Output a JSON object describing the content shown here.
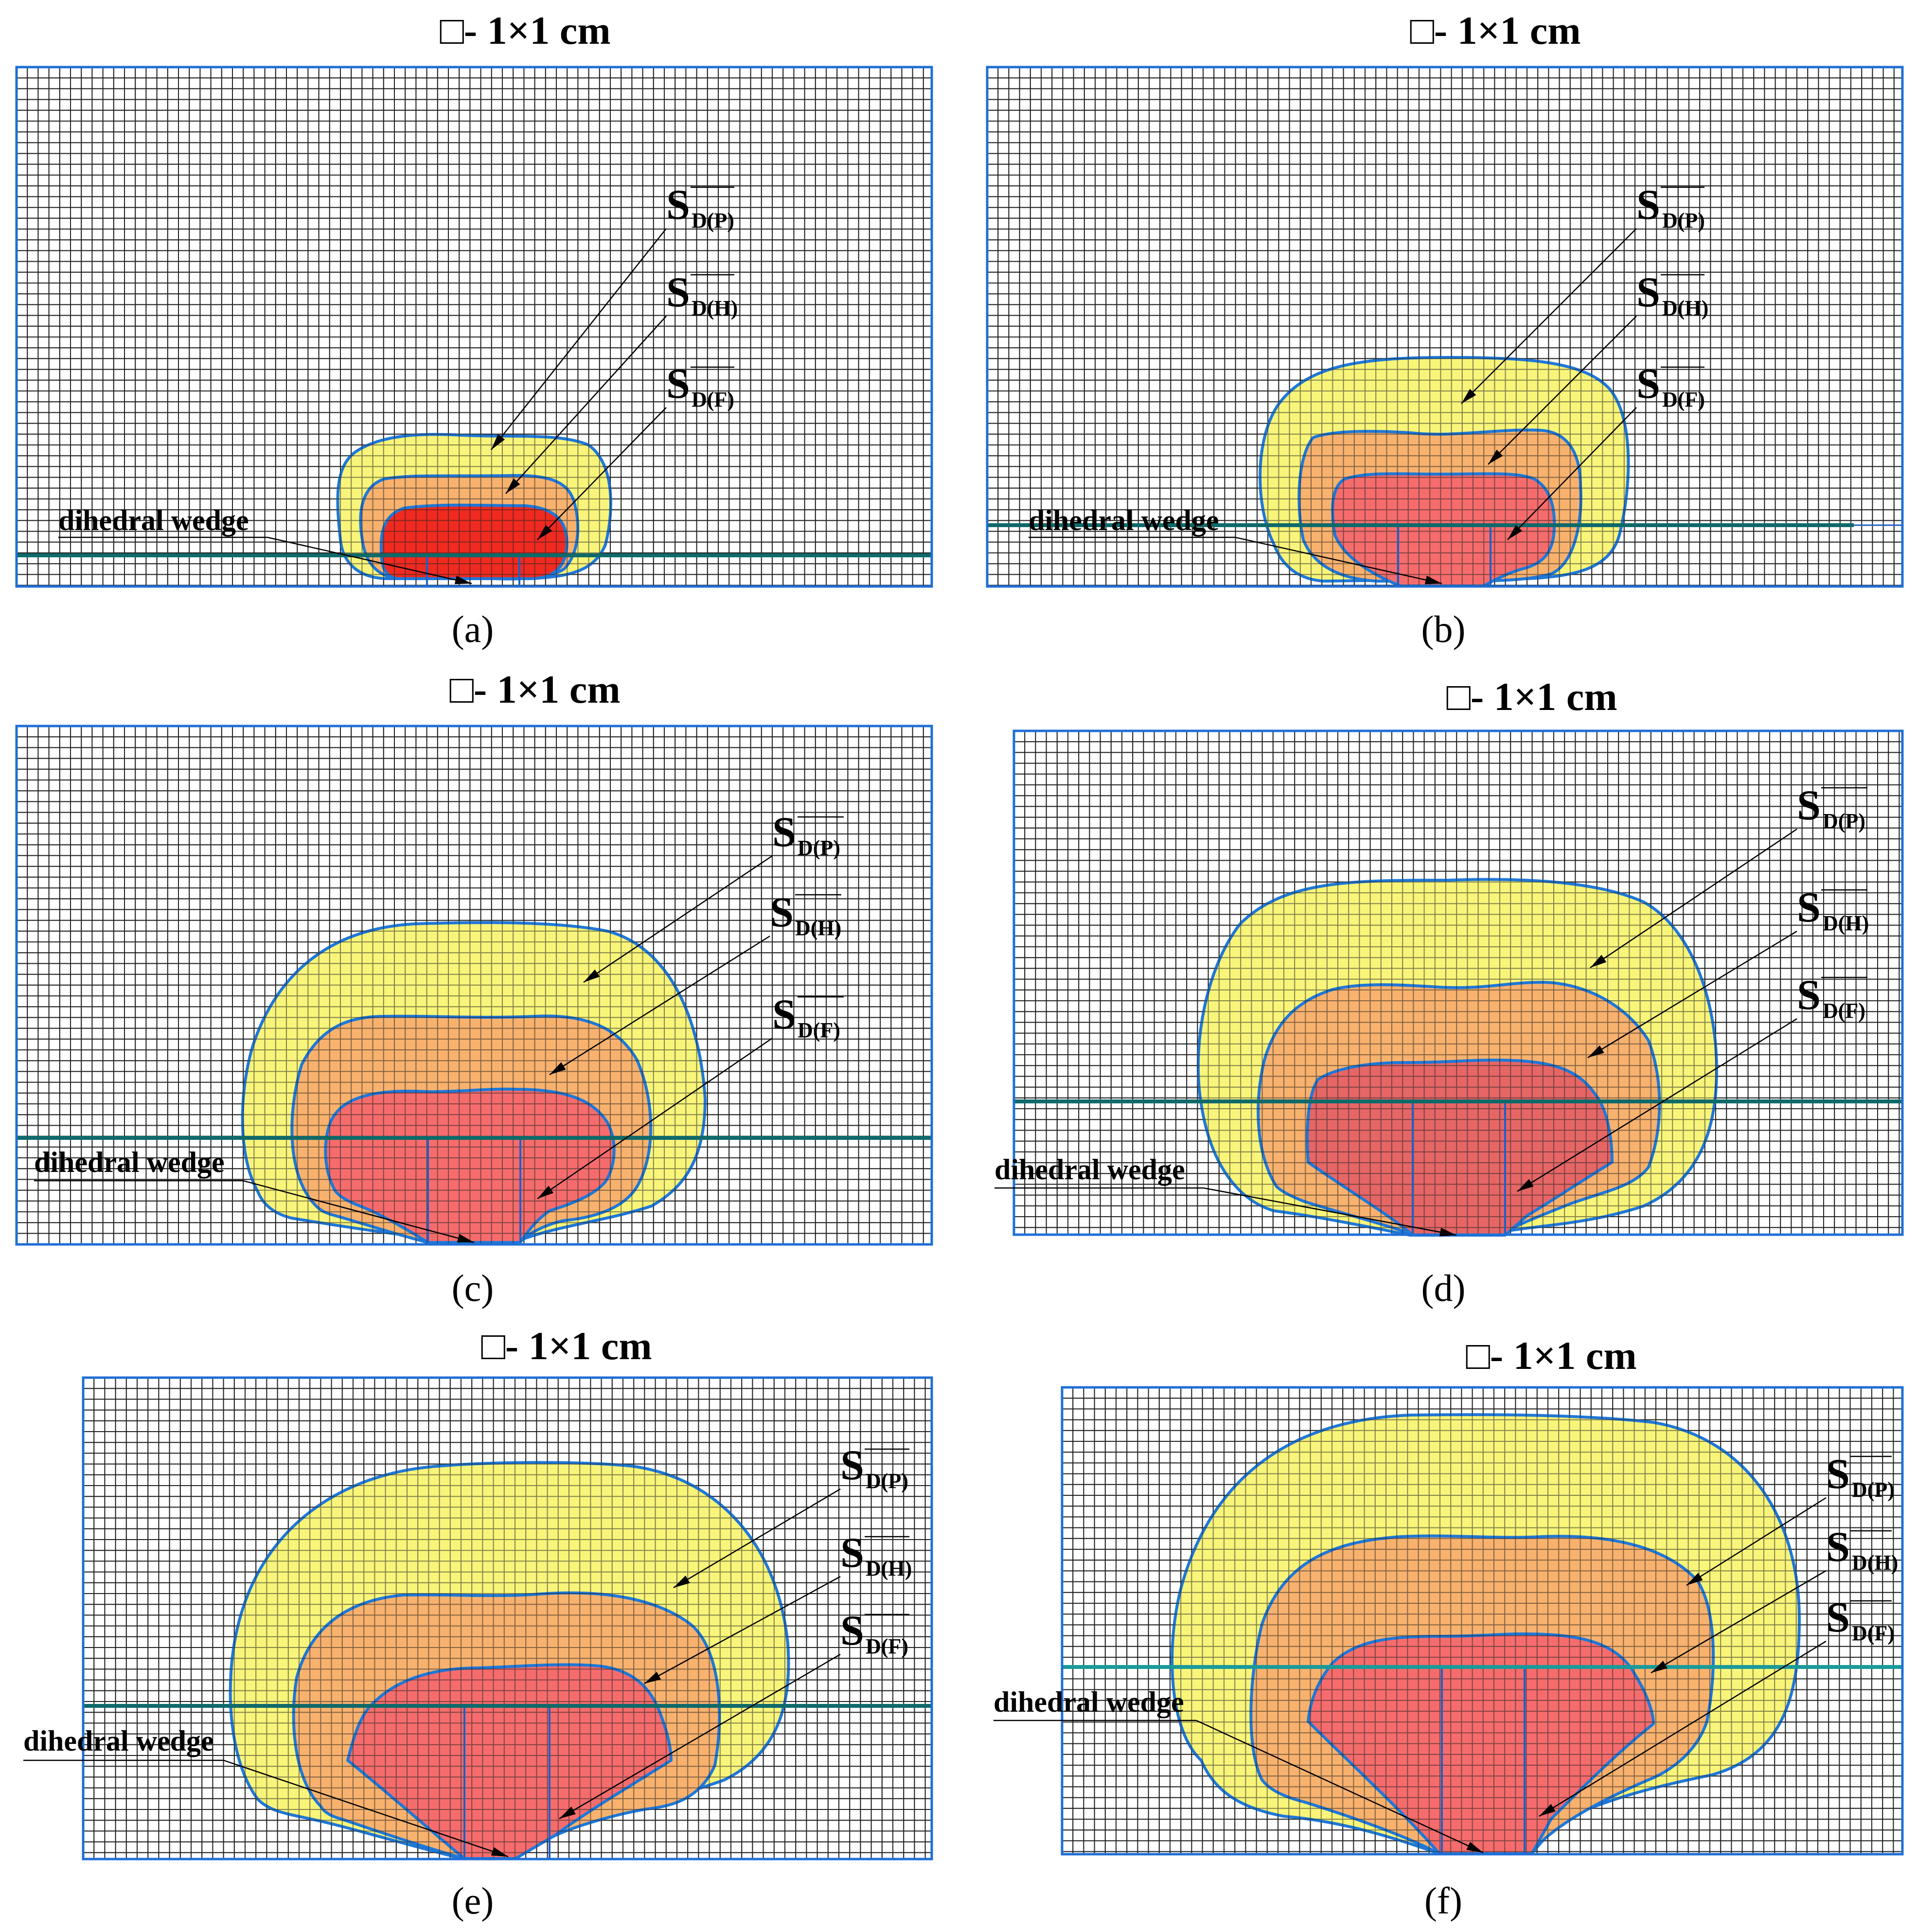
{
  "panels": [
    {
      "id": "a",
      "scale_label": "□- 1×1 cm",
      "caption": "(a)",
      "labels": {
        "sd_p": {
          "main": "S",
          "sub": "D(P)"
        },
        "sd_h": {
          "main": "S",
          "sub": "D(H)"
        },
        "sd_f": {
          "main": "S",
          "sub": "D(F)"
        },
        "wedge": "dihedral wedge"
      },
      "colors": {
        "yellow": "#f9f57a",
        "orange": "#f8b26e",
        "red": "#f02a20"
      }
    },
    {
      "id": "b",
      "scale_label": "□- 1×1 cm",
      "caption": "(b)",
      "labels": {
        "sd_p": {
          "main": "S",
          "sub": "D(P)"
        },
        "sd_h": {
          "main": "S",
          "sub": "D(H)"
        },
        "sd_f": {
          "main": "S",
          "sub": "D(F)"
        },
        "wedge": "dihedral wedge"
      },
      "colors": {
        "yellow": "#f9f57a",
        "orange": "#f8b26e",
        "red": "#f66c6c"
      }
    },
    {
      "id": "c",
      "scale_label": "□- 1×1 cm",
      "caption": "(c)",
      "labels": {
        "sd_p": {
          "main": "S",
          "sub": "D(P)"
        },
        "sd_h": {
          "main": "S",
          "sub": "D(H)"
        },
        "sd_f": {
          "main": "S",
          "sub": "D(F)"
        },
        "wedge": "dihedral wedge"
      },
      "colors": {
        "yellow": "#f9f57a",
        "orange": "#f8b26e",
        "red": "#f66c6c"
      }
    },
    {
      "id": "d",
      "scale_label": "□- 1×1 cm",
      "caption": "(d)",
      "labels": {
        "sd_p": {
          "main": "S",
          "sub": "D(P)"
        },
        "sd_h": {
          "main": "S",
          "sub": "D(H)"
        },
        "sd_f": {
          "main": "S",
          "sub": "D(F)"
        },
        "wedge": "dihedral wedge"
      },
      "colors": {
        "yellow": "#f9f57a",
        "orange": "#f8b26e",
        "red": "#e66666"
      }
    },
    {
      "id": "e",
      "scale_label": "□- 1×1 cm",
      "caption": "(e)",
      "labels": {
        "sd_p": {
          "main": "S",
          "sub": "D(P)"
        },
        "sd_h": {
          "main": "S",
          "sub": "D(H)"
        },
        "sd_f": {
          "main": "S",
          "sub": "D(F)"
        },
        "wedge": "dihedral wedge"
      },
      "colors": {
        "yellow": "#f9f57a",
        "orange": "#f8b26e",
        "red": "#f66c6c"
      }
    },
    {
      "id": "f",
      "scale_label": "□- 1×1 cm",
      "caption": "(f)",
      "labels": {
        "sd_p": {
          "main": "S",
          "sub": "D(P)"
        },
        "sd_h": {
          "main": "S",
          "sub": "D(H)"
        },
        "sd_f": {
          "main": "S",
          "sub": "D(F)"
        },
        "wedge": "dihedral wedge"
      },
      "colors": {
        "yellow": "#f9f57a",
        "orange": "#f8b26e",
        "red": "#f66c6c"
      }
    }
  ]
}
